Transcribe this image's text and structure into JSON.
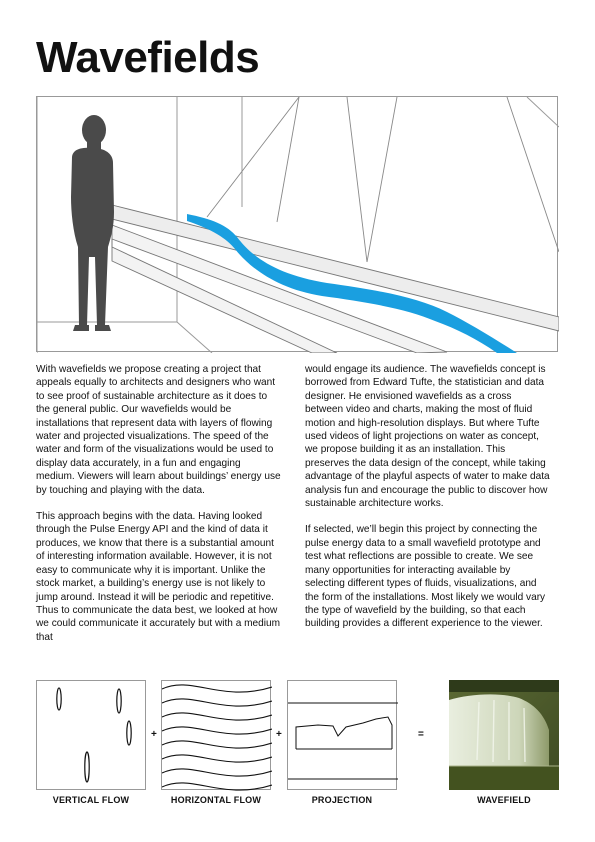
{
  "title": "Wavefields",
  "body": {
    "left": [
      "With wavefields we propose creating a project that appeals equally to architects and designers who want to see proof of sustainable architecture as it does to the general public. Our wavefields would be installations that represent data with layers of flowing water and projected visualizations. The speed of the water and form of the visualizations would be used to display data accurately, in a fun and engaging medium. Viewers will learn about buildings’ energy use by touching and playing with the data.",
      "This approach begins with the data. Having looked through the Pulse Energy API and the kind of data it produces, we know that there is a substantial amount of interesting information available. However, it is not easy to communicate why it is important. Unlike the stock market, a building’s energy use is not likely to jump around. Instead it will be periodic and repetitive. Thus to communicate the data best, we looked at how we could communicate it accurately but with a medium that"
    ],
    "right": [
      "would engage its audience. The wavefields concept is borrowed from Edward Tufte, the statistician and data designer. He envisioned wavefields as a cross between video and charts, making the most of fluid motion and high-resolution displays. But where Tufte used videos of light projections on water as concept, we propose building it as an installation. This preserves the data design of the concept, while taking advantage of the playful aspects of water to make data analysis fun and encourage the public to discover how sustainable architecture works.",
      "If selected, we’ll begin this project by connecting the pulse energy data to a small wavefield prototype and test what reflections are possible to create. We see many opportunities for interacting available by selecting different types of fluids, visualizations, and the form of the installations. Most likely we would vary the type of wavefield by the building, so that each building provides a different experience to the viewer."
    ]
  },
  "diagram": {
    "operators": [
      "+",
      "+",
      "="
    ],
    "captions": [
      "VERTICAL FLOW",
      "HORIZONTAL FLOW",
      "PROJECTION",
      "WAVEFIELD"
    ]
  },
  "colors": {
    "water": "#1a9fe0",
    "figure": "#4a4a4a"
  }
}
